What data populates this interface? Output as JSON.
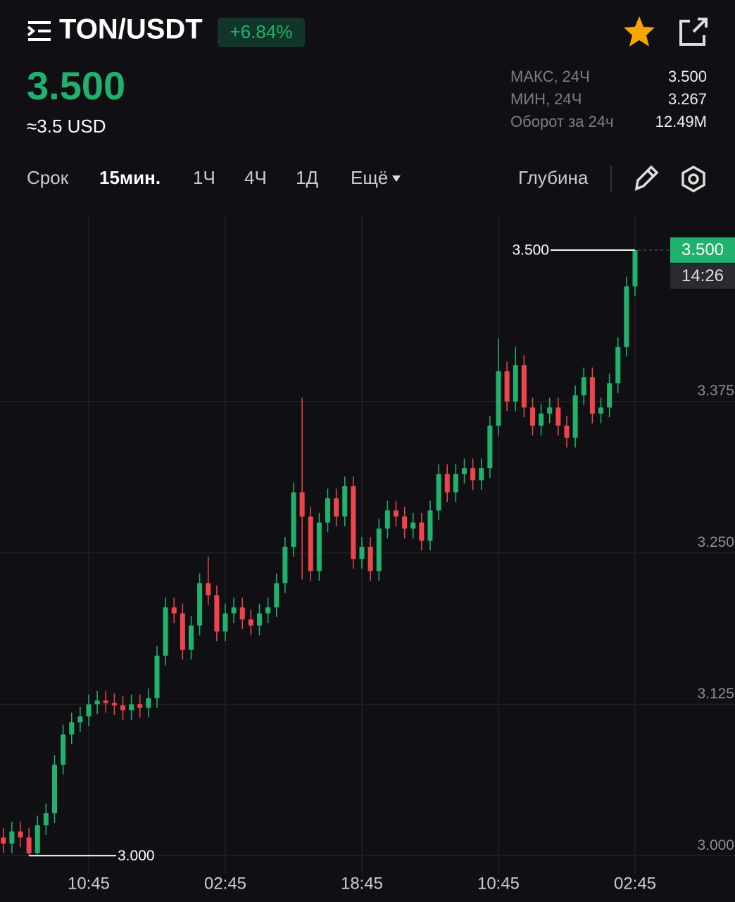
{
  "header": {
    "pair": "TON/USDT",
    "change": "+6.84%",
    "price": "3.500",
    "usd": "≈3.5 USD",
    "stats": [
      [
        "МАКС, 24Ч",
        "3.500"
      ],
      [
        "МИН, 24Ч",
        "3.267"
      ],
      [
        "Оборот за 24ч",
        "12.49M"
      ]
    ]
  },
  "toolbar": {
    "tabs": [
      "Срок",
      "15мин.",
      "1Ч",
      "4Ч",
      "1Д",
      "Ещё"
    ],
    "depth": "Глубина"
  },
  "chart_data": {
    "type": "candlestick",
    "up_color": "#20b26c",
    "down_color": "#ef454a",
    "grid": true,
    "categories": [
      null,
      null,
      null,
      null,
      null,
      null,
      null,
      null,
      null,
      null,
      "10:45",
      null,
      null,
      null,
      null,
      null,
      null,
      null,
      null,
      null,
      null,
      null,
      null,
      null,
      null,
      null,
      "02:45",
      null,
      null,
      null,
      null,
      null,
      null,
      null,
      null,
      null,
      null,
      null,
      null,
      null,
      null,
      null,
      "18:45",
      null,
      null,
      null,
      null,
      null,
      null,
      null,
      null,
      null,
      null,
      null,
      null,
      null,
      null,
      null,
      "10:45",
      null,
      null,
      null,
      null,
      null,
      null,
      null,
      null,
      null,
      null,
      null,
      null,
      null,
      null,
      null,
      "02:45"
    ],
    "open": [
      3.015,
      3.01,
      3.02,
      3.015,
      3.002,
      3.025,
      3.035,
      3.075,
      3.1,
      3.11,
      3.115,
      3.125,
      3.128,
      3.126,
      3.124,
      3.12,
      3.125,
      3.122,
      3.13,
      3.165,
      3.205,
      3.2,
      3.17,
      3.19,
      3.225,
      3.215,
      3.185,
      3.2,
      3.205,
      3.195,
      3.19,
      3.2,
      3.205,
      3.225,
      3.255,
      3.3,
      3.28,
      3.235,
      3.275,
      3.295,
      3.28,
      3.305,
      3.245,
      3.255,
      3.235,
      3.27,
      3.285,
      3.28,
      3.27,
      3.275,
      3.26,
      3.285,
      3.315,
      3.3,
      3.315,
      3.32,
      3.31,
      3.32,
      3.355,
      3.4,
      3.375,
      3.405,
      3.37,
      3.355,
      3.365,
      3.37,
      3.355,
      3.345,
      3.38,
      3.395,
      3.365,
      3.37,
      3.39,
      3.42,
      3.47
    ],
    "high": [
      3.023,
      3.028,
      3.028,
      3.023,
      3.033,
      3.043,
      3.083,
      3.108,
      3.118,
      3.123,
      3.133,
      3.136,
      3.136,
      3.134,
      3.132,
      3.133,
      3.133,
      3.138,
      3.173,
      3.213,
      3.213,
      3.208,
      3.198,
      3.233,
      3.247,
      3.223,
      3.208,
      3.213,
      3.213,
      3.203,
      3.208,
      3.213,
      3.233,
      3.263,
      3.308,
      3.378,
      3.288,
      3.283,
      3.303,
      3.303,
      3.313,
      3.313,
      3.263,
      3.263,
      3.278,
      3.293,
      3.293,
      3.288,
      3.283,
      3.283,
      3.293,
      3.323,
      3.323,
      3.323,
      3.328,
      3.328,
      3.328,
      3.363,
      3.427,
      3.408,
      3.42,
      3.413,
      3.378,
      3.373,
      3.378,
      3.378,
      3.363,
      3.388,
      3.403,
      3.403,
      3.378,
      3.398,
      3.428,
      3.478,
      3.5
    ],
    "low": [
      3.002,
      3.002,
      3.007,
      3.0,
      3.001,
      3.017,
      3.027,
      3.067,
      3.092,
      3.102,
      3.107,
      3.117,
      3.118,
      3.116,
      3.112,
      3.112,
      3.114,
      3.114,
      3.122,
      3.157,
      3.192,
      3.162,
      3.162,
      3.182,
      3.207,
      3.177,
      3.177,
      3.192,
      3.187,
      3.182,
      3.182,
      3.192,
      3.197,
      3.217,
      3.247,
      3.228,
      3.227,
      3.227,
      3.267,
      3.272,
      3.272,
      3.237,
      3.237,
      3.227,
      3.227,
      3.262,
      3.272,
      3.262,
      3.262,
      3.252,
      3.252,
      3.277,
      3.292,
      3.292,
      3.307,
      3.302,
      3.302,
      3.312,
      3.347,
      3.367,
      3.367,
      3.362,
      3.347,
      3.347,
      3.357,
      3.347,
      3.337,
      3.337,
      3.372,
      3.357,
      3.357,
      3.362,
      3.382,
      3.412,
      3.462
    ],
    "close": [
      3.01,
      3.02,
      3.015,
      3.002,
      3.025,
      3.035,
      3.075,
      3.1,
      3.11,
      3.115,
      3.125,
      3.128,
      3.126,
      3.124,
      3.12,
      3.125,
      3.122,
      3.13,
      3.165,
      3.205,
      3.2,
      3.17,
      3.19,
      3.225,
      3.215,
      3.185,
      3.2,
      3.205,
      3.195,
      3.19,
      3.2,
      3.205,
      3.225,
      3.255,
      3.3,
      3.28,
      3.235,
      3.275,
      3.295,
      3.28,
      3.305,
      3.245,
      3.255,
      3.235,
      3.27,
      3.285,
      3.28,
      3.27,
      3.275,
      3.26,
      3.285,
      3.315,
      3.3,
      3.315,
      3.32,
      3.31,
      3.32,
      3.355,
      3.4,
      3.375,
      3.405,
      3.37,
      3.355,
      3.365,
      3.37,
      3.355,
      3.345,
      3.38,
      3.395,
      3.365,
      3.37,
      3.39,
      3.42,
      3.47,
      3.5
    ],
    "ylim": [
      2.985,
      3.529
    ],
    "yticks": [
      {
        "value": 3,
        "label": "3.000"
      },
      3.125,
      {
        "value": 3.25,
        "label": "3.250"
      },
      3.375
    ],
    "max_marker": {
      "value": 3.5,
      "label": "3.500"
    },
    "min_marker": {
      "value": 3,
      "label": "3.000"
    },
    "last_price": {
      "value": 3.5,
      "label": "3.500"
    },
    "countdown": "14:26"
  }
}
